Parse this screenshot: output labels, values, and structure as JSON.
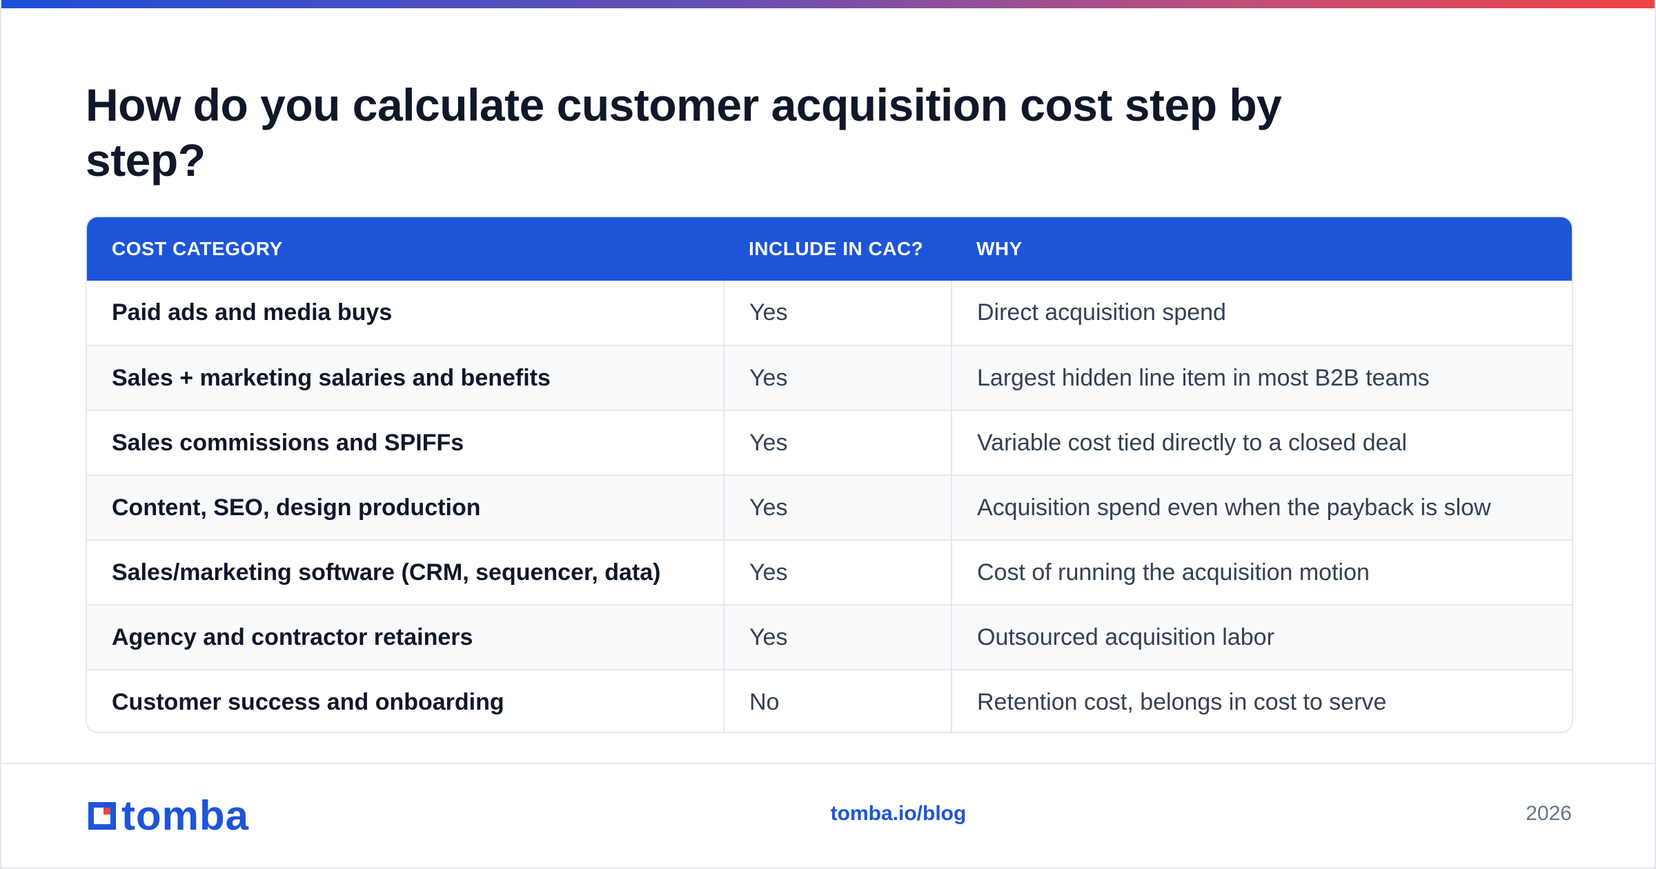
{
  "title": "How do you calculate customer acquisition cost step by step?",
  "table": {
    "headers": [
      "COST CATEGORY",
      "INCLUDE IN CAC?",
      "WHY"
    ],
    "rows": [
      {
        "category": "Paid ads and media buys",
        "include": "Yes",
        "why": "Direct acquisition spend"
      },
      {
        "category": "Sales + marketing salaries and benefits",
        "include": "Yes",
        "why": "Largest hidden line item in most B2B teams"
      },
      {
        "category": "Sales commissions and SPIFFs",
        "include": "Yes",
        "why": "Variable cost tied directly to a closed deal"
      },
      {
        "category": "Content, SEO, design production",
        "include": "Yes",
        "why": "Acquisition spend even when the payback is slow"
      },
      {
        "category": "Sales/marketing software (CRM, sequencer, data)",
        "include": "Yes",
        "why": "Cost of running the acquisition motion"
      },
      {
        "category": "Agency and contractor retainers",
        "include": "Yes",
        "why": "Outsourced acquisition labor"
      },
      {
        "category": "Customer success and onboarding",
        "include": "No",
        "why": "Retention cost, belongs in cost to serve"
      }
    ]
  },
  "footer": {
    "logo_text": "tomba",
    "url": "tomba.io/blog",
    "year": "2026"
  },
  "colors": {
    "brand_blue": "#1d55d8",
    "logo_red": "#ef4444",
    "title": "#0f172a"
  }
}
